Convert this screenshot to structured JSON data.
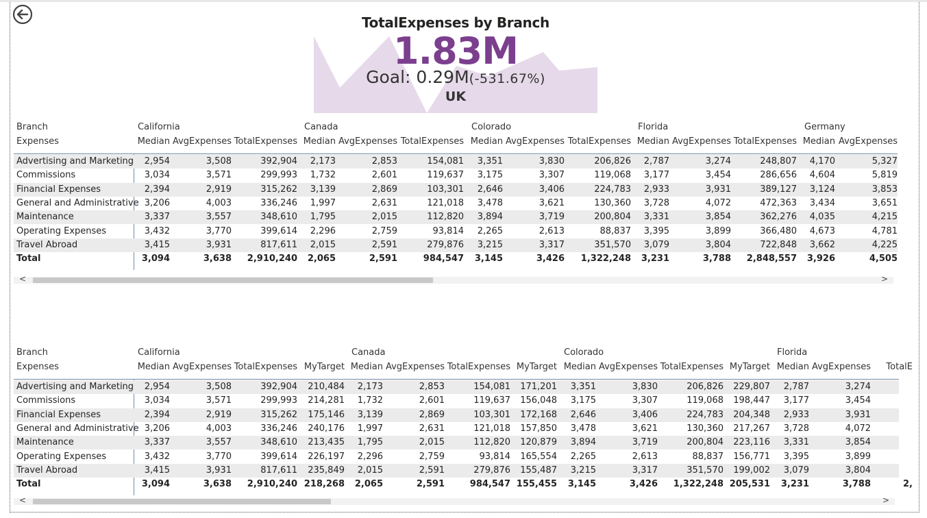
{
  "kpi": {
    "title": "TotalExpenses by Branch",
    "value": "1.83M",
    "goal_label": "Goal: 0.29M",
    "goal_diff": "(-531.67%)",
    "subtitle": "UK",
    "trend_color": "#e6d9ea",
    "value_color": "#7b3f8e"
  },
  "icons": {
    "back": "back-arrow-icon"
  },
  "table1": {
    "row_header": "Branch",
    "row_subheader": "Expenses",
    "groups": [
      "California",
      "Canada",
      "Colorado",
      "Florida",
      "Germany"
    ],
    "columns": [
      "Median",
      "AvgExpenses",
      "TotalExpenses",
      "Median",
      "AvgExpenses",
      "TotalExpenses",
      "Median",
      "AvgExpenses",
      "TotalExpenses",
      "Median",
      "AvgExpenses",
      "TotalExpenses",
      "Median",
      "AvgExpenses"
    ],
    "rows": [
      {
        "label": "Advertising and Marketing",
        "values": [
          "2,954",
          "3,508",
          "392,904",
          "2,173",
          "2,853",
          "154,081",
          "3,351",
          "3,830",
          "206,826",
          "2,787",
          "3,274",
          "248,807",
          "4,170",
          "5,327"
        ]
      },
      {
        "label": "Commissions",
        "values": [
          "3,034",
          "3,571",
          "299,993",
          "1,732",
          "2,601",
          "119,637",
          "3,175",
          "3,307",
          "119,068",
          "3,177",
          "3,454",
          "286,656",
          "4,604",
          "5,819"
        ]
      },
      {
        "label": "Financial Expenses",
        "values": [
          "2,394",
          "2,919",
          "315,262",
          "3,139",
          "2,869",
          "103,301",
          "2,646",
          "3,406",
          "224,783",
          "2,933",
          "3,931",
          "389,127",
          "3,124",
          "3,853"
        ]
      },
      {
        "label": "General and Administrative",
        "values": [
          "3,206",
          "4,003",
          "336,246",
          "1,997",
          "2,631",
          "121,018",
          "3,478",
          "3,621",
          "130,360",
          "3,728",
          "4,072",
          "472,363",
          "3,434",
          "3,651"
        ]
      },
      {
        "label": "Maintenance",
        "values": [
          "3,337",
          "3,557",
          "348,610",
          "1,795",
          "2,015",
          "112,820",
          "3,894",
          "3,719",
          "200,804",
          "3,331",
          "3,854",
          "362,276",
          "4,035",
          "4,215"
        ]
      },
      {
        "label": "Operating Expenses",
        "values": [
          "3,432",
          "3,770",
          "399,614",
          "2,296",
          "2,759",
          "93,814",
          "2,265",
          "2,613",
          "88,837",
          "3,395",
          "3,899",
          "366,480",
          "4,673",
          "4,781"
        ]
      },
      {
        "label": "Travel Abroad",
        "values": [
          "3,415",
          "3,931",
          "817,611",
          "2,015",
          "2,591",
          "279,876",
          "3,215",
          "3,317",
          "351,570",
          "3,079",
          "3,804",
          "722,848",
          "3,662",
          "4,225"
        ]
      }
    ],
    "total": {
      "label": "Total",
      "values": [
        "3,094",
        "3,638",
        "2,910,240",
        "2,065",
        "2,591",
        "984,547",
        "3,145",
        "3,426",
        "1,322,248",
        "3,231",
        "3,788",
        "2,848,557",
        "3,926",
        "4,505"
      ]
    },
    "scroll_left": "<",
    "scroll_right": ">",
    "scroll_fraction": 0.35
  },
  "table2": {
    "row_header": "Branch",
    "row_subheader": "Expenses",
    "groups": [
      "California",
      "Canada",
      "Colorado",
      "Florida"
    ],
    "columns": [
      "Median",
      "AvgExpenses",
      "TotalExpenses",
      "MyTarget",
      "Median",
      "AvgExpenses",
      "TotalExpenses",
      "MyTarget",
      "Median",
      "AvgExpenses",
      "TotalExpenses",
      "MyTarget",
      "Median",
      "AvgExpenses",
      "TotalE"
    ],
    "rows": [
      {
        "label": "Advertising and Marketing",
        "values": [
          "2,954",
          "3,508",
          "392,904",
          "210,484",
          "2,173",
          "2,853",
          "154,081",
          "171,201",
          "3,351",
          "3,830",
          "206,826",
          "229,807",
          "2,787",
          "3,274",
          ""
        ]
      },
      {
        "label": "Commissions",
        "values": [
          "3,034",
          "3,571",
          "299,993",
          "214,281",
          "1,732",
          "2,601",
          "119,637",
          "156,048",
          "3,175",
          "3,307",
          "119,068",
          "198,447",
          "3,177",
          "3,454",
          ""
        ]
      },
      {
        "label": "Financial Expenses",
        "values": [
          "2,394",
          "2,919",
          "315,262",
          "175,146",
          "3,139",
          "2,869",
          "103,301",
          "172,168",
          "2,646",
          "3,406",
          "224,783",
          "204,348",
          "2,933",
          "3,931",
          ""
        ]
      },
      {
        "label": "General and Administrative",
        "values": [
          "3,206",
          "4,003",
          "336,246",
          "240,176",
          "1,997",
          "2,631",
          "121,018",
          "157,850",
          "3,478",
          "3,621",
          "130,360",
          "217,267",
          "3,728",
          "4,072",
          ""
        ]
      },
      {
        "label": "Maintenance",
        "values": [
          "3,337",
          "3,557",
          "348,610",
          "213,435",
          "1,795",
          "2,015",
          "112,820",
          "120,879",
          "3,894",
          "3,719",
          "200,804",
          "223,116",
          "3,331",
          "3,854",
          ""
        ]
      },
      {
        "label": "Operating Expenses",
        "values": [
          "3,432",
          "3,770",
          "399,614",
          "226,197",
          "2,296",
          "2,759",
          "93,814",
          "165,554",
          "2,265",
          "2,613",
          "88,837",
          "156,771",
          "3,395",
          "3,899",
          ""
        ]
      },
      {
        "label": "Travel Abroad",
        "values": [
          "3,415",
          "3,931",
          "817,611",
          "235,849",
          "2,015",
          "2,591",
          "279,876",
          "155,487",
          "3,215",
          "3,317",
          "351,570",
          "199,002",
          "3,079",
          "3,804",
          ""
        ]
      }
    ],
    "total": {
      "label": "Total",
      "values": [
        "3,094",
        "3,638",
        "2,910,240",
        "218,268",
        "2,065",
        "2,591",
        "984,547",
        "155,455",
        "3,145",
        "3,426",
        "1,322,248",
        "205,531",
        "3,231",
        "3,788",
        "2,"
      ]
    },
    "scroll_left": "<",
    "scroll_right": ">",
    "scroll_fraction": 0.26
  }
}
